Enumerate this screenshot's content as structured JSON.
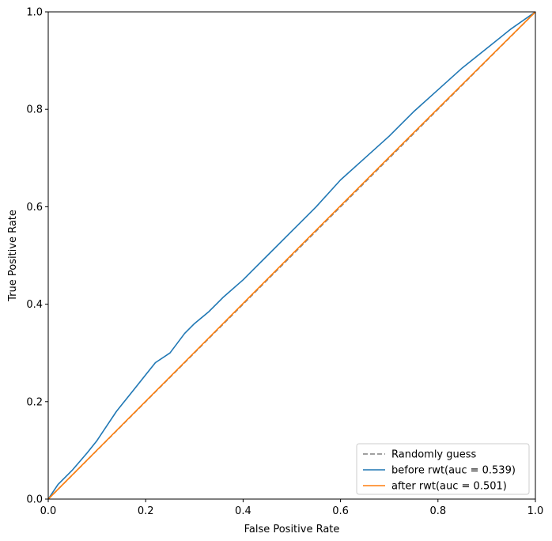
{
  "chart_data": {
    "type": "line",
    "title": "",
    "xlabel": "False Positive Rate",
    "ylabel": "True Positive Rate",
    "xlim": [
      0,
      1
    ],
    "ylim": [
      0,
      1
    ],
    "xticks": [
      "0.0",
      "0.2",
      "0.4",
      "0.6",
      "0.8",
      "1.0"
    ],
    "yticks": [
      "0.0",
      "0.2",
      "0.4",
      "0.6",
      "0.8",
      "1.0"
    ],
    "grid": false,
    "legend_position": "bottom-right",
    "series": [
      {
        "name": "Randomly guess",
        "color": "#808080",
        "style": "dashed",
        "x": [
          0,
          1
        ],
        "y": [
          0,
          1
        ]
      },
      {
        "name": "before rwt(auc = 0.539)",
        "color": "#1f77b4",
        "style": "solid",
        "x": [
          0,
          0.02,
          0.05,
          0.08,
          0.1,
          0.12,
          0.14,
          0.16,
          0.18,
          0.2,
          0.22,
          0.25,
          0.28,
          0.3,
          0.33,
          0.36,
          0.4,
          0.42,
          0.45,
          0.5,
          0.55,
          0.6,
          0.65,
          0.7,
          0.75,
          0.8,
          0.85,
          0.9,
          0.95,
          1.0
        ],
        "y": [
          0,
          0.03,
          0.06,
          0.095,
          0.12,
          0.15,
          0.18,
          0.205,
          0.23,
          0.255,
          0.28,
          0.3,
          0.34,
          0.36,
          0.385,
          0.415,
          0.45,
          0.47,
          0.5,
          0.55,
          0.6,
          0.655,
          0.7,
          0.745,
          0.795,
          0.84,
          0.885,
          0.925,
          0.965,
          1.0
        ]
      },
      {
        "name": "after rwt(auc = 0.501)",
        "color": "#ff7f0e",
        "style": "solid",
        "x": [
          0,
          0.25,
          0.5,
          0.75,
          1.0
        ],
        "y": [
          0,
          0.251,
          0.502,
          0.752,
          1.0
        ]
      }
    ]
  }
}
